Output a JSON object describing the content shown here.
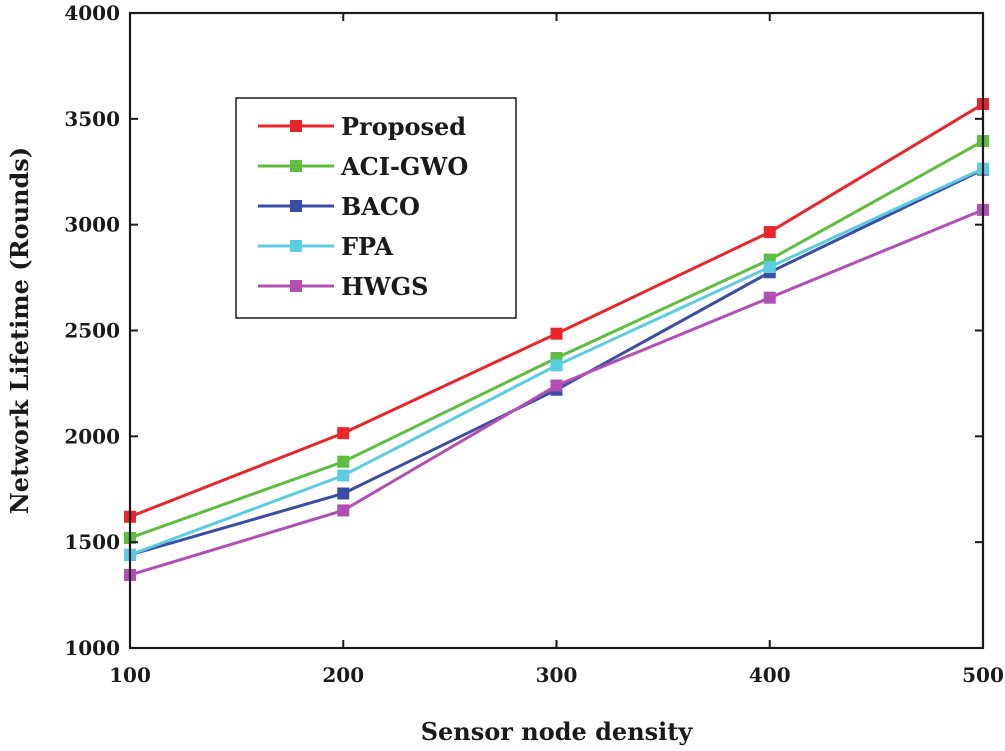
{
  "chart_data": {
    "type": "line",
    "title": "",
    "xlabel": "Sensor node density",
    "ylabel": "Network Lifetime (Rounds)",
    "x": [
      100,
      200,
      300,
      400,
      500
    ],
    "xlim": [
      100,
      500
    ],
    "ylim": [
      1000,
      4000
    ],
    "xticks": [
      "100",
      "200",
      "300",
      "400",
      "500"
    ],
    "yticks": [
      "1000",
      "1500",
      "2000",
      "2500",
      "3000",
      "3500",
      "4000"
    ],
    "legend_position": "top-left",
    "grid": false,
    "series": [
      {
        "name": "Proposed",
        "color": "#e8262b",
        "values": [
          1620,
          2015,
          2485,
          2965,
          3570
        ]
      },
      {
        "name": "ACI-GWO",
        "color": "#5fbd3f",
        "values": [
          1520,
          1880,
          2370,
          2835,
          3395
        ]
      },
      {
        "name": "BACO",
        "color": "#3b4ea3",
        "values": [
          1440,
          1730,
          2220,
          2775,
          3260
        ]
      },
      {
        "name": "FPA",
        "color": "#5ccce0",
        "values": [
          1440,
          1815,
          2335,
          2800,
          3265
        ]
      },
      {
        "name": "HWGS",
        "color": "#b14fb4",
        "values": [
          1345,
          1650,
          2240,
          2655,
          3070
        ]
      }
    ]
  }
}
